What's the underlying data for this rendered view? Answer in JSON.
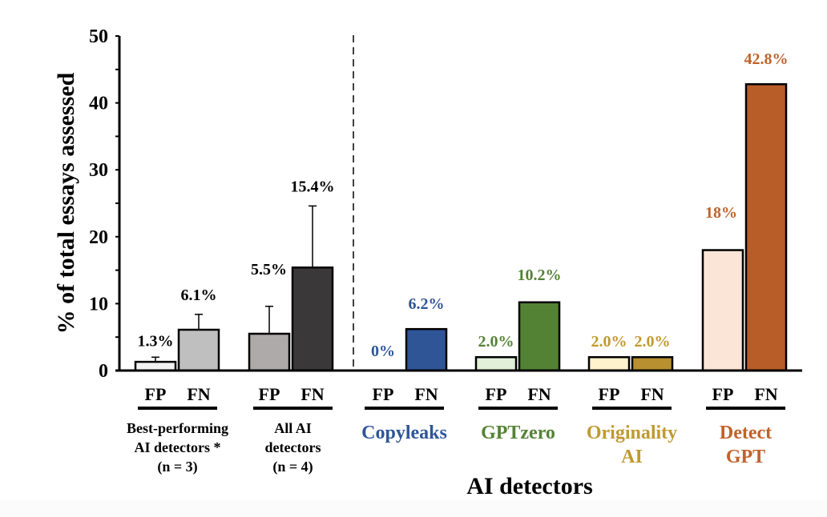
{
  "chart_data": {
    "type": "bar",
    "title": "",
    "ylabel": "% of total essays assessed",
    "xlabel": "AI detectors",
    "ylim": [
      0,
      50
    ],
    "yticks": [
      0,
      10,
      20,
      30,
      40,
      50
    ],
    "yminor_step": 5,
    "grid": false,
    "legend": "none",
    "separator": "dashed vertical line between aggregate groups and individual detectors",
    "groups": [
      {
        "name": "Best-performing AI detectors * (n = 3)",
        "label_lines": [
          "Best-performing",
          "AI detectors *",
          "(n = 3)"
        ],
        "label_color": "#000000",
        "bars": [
          {
            "category": "FP",
            "value": 1.3,
            "label": "1.3%",
            "error_upper": 2.0,
            "fill": "#f2f2f2",
            "label_color": "#000000"
          },
          {
            "category": "FN",
            "value": 6.1,
            "label": "6.1%",
            "error_upper": 8.4,
            "fill": "#bfbfbf",
            "label_color": "#000000"
          }
        ]
      },
      {
        "name": "All AI detectors (n = 4)",
        "label_lines": [
          "All AI",
          "detectors",
          "(n = 4)"
        ],
        "label_color": "#000000",
        "bars": [
          {
            "category": "FP",
            "value": 5.5,
            "label": "5.5%",
            "error_upper": 9.6,
            "fill": "#aeaaaa",
            "label_color": "#000000"
          },
          {
            "category": "FN",
            "value": 15.4,
            "label": "15.4%",
            "error_upper": 24.6,
            "fill": "#3a3838",
            "label_color": "#000000"
          }
        ]
      },
      {
        "name": "Copyleaks",
        "label_lines": [
          "Copyleaks"
        ],
        "label_color": "#2f5597",
        "bars": [
          {
            "category": "FP",
            "value": 0,
            "label": "0%",
            "error_upper": null,
            "fill": "#dae3f3",
            "label_color": "#2f5597"
          },
          {
            "category": "FN",
            "value": 6.2,
            "label": "6.2%",
            "error_upper": null,
            "fill": "#2f5597",
            "label_color": "#2f5597"
          }
        ]
      },
      {
        "name": "GPTzero",
        "label_lines": [
          "GPTzero"
        ],
        "label_color": "#548235",
        "bars": [
          {
            "category": "FP",
            "value": 2.0,
            "label": "2.0%",
            "error_upper": null,
            "fill": "#e2f0d9",
            "label_color": "#548235"
          },
          {
            "category": "FN",
            "value": 10.2,
            "label": "10.2%",
            "error_upper": null,
            "fill": "#548235",
            "label_color": "#548235"
          }
        ]
      },
      {
        "name": "Originality AI",
        "label_lines": [
          "Originality",
          "AI"
        ],
        "label_color": "#bf9a30",
        "bars": [
          {
            "category": "FP",
            "value": 2.0,
            "label": "2.0%",
            "error_upper": null,
            "fill": "#fff2cc",
            "label_color": "#bf9a30"
          },
          {
            "category": "FN",
            "value": 2.0,
            "label": "2.0%",
            "error_upper": null,
            "fill": "#b89030",
            "label_color": "#bf9a30"
          }
        ]
      },
      {
        "name": "Detect GPT",
        "label_lines": [
          "Detect",
          "GPT"
        ],
        "label_color": "#c0622a",
        "bars": [
          {
            "category": "FP",
            "value": 18,
            "label": "18%",
            "error_upper": null,
            "fill": "#fbe5d6",
            "label_color": "#c0622a"
          },
          {
            "category": "FN",
            "value": 42.8,
            "label": "42.8%",
            "error_upper": null,
            "fill": "#b85c28",
            "label_color": "#c0622a"
          }
        ]
      }
    ]
  }
}
